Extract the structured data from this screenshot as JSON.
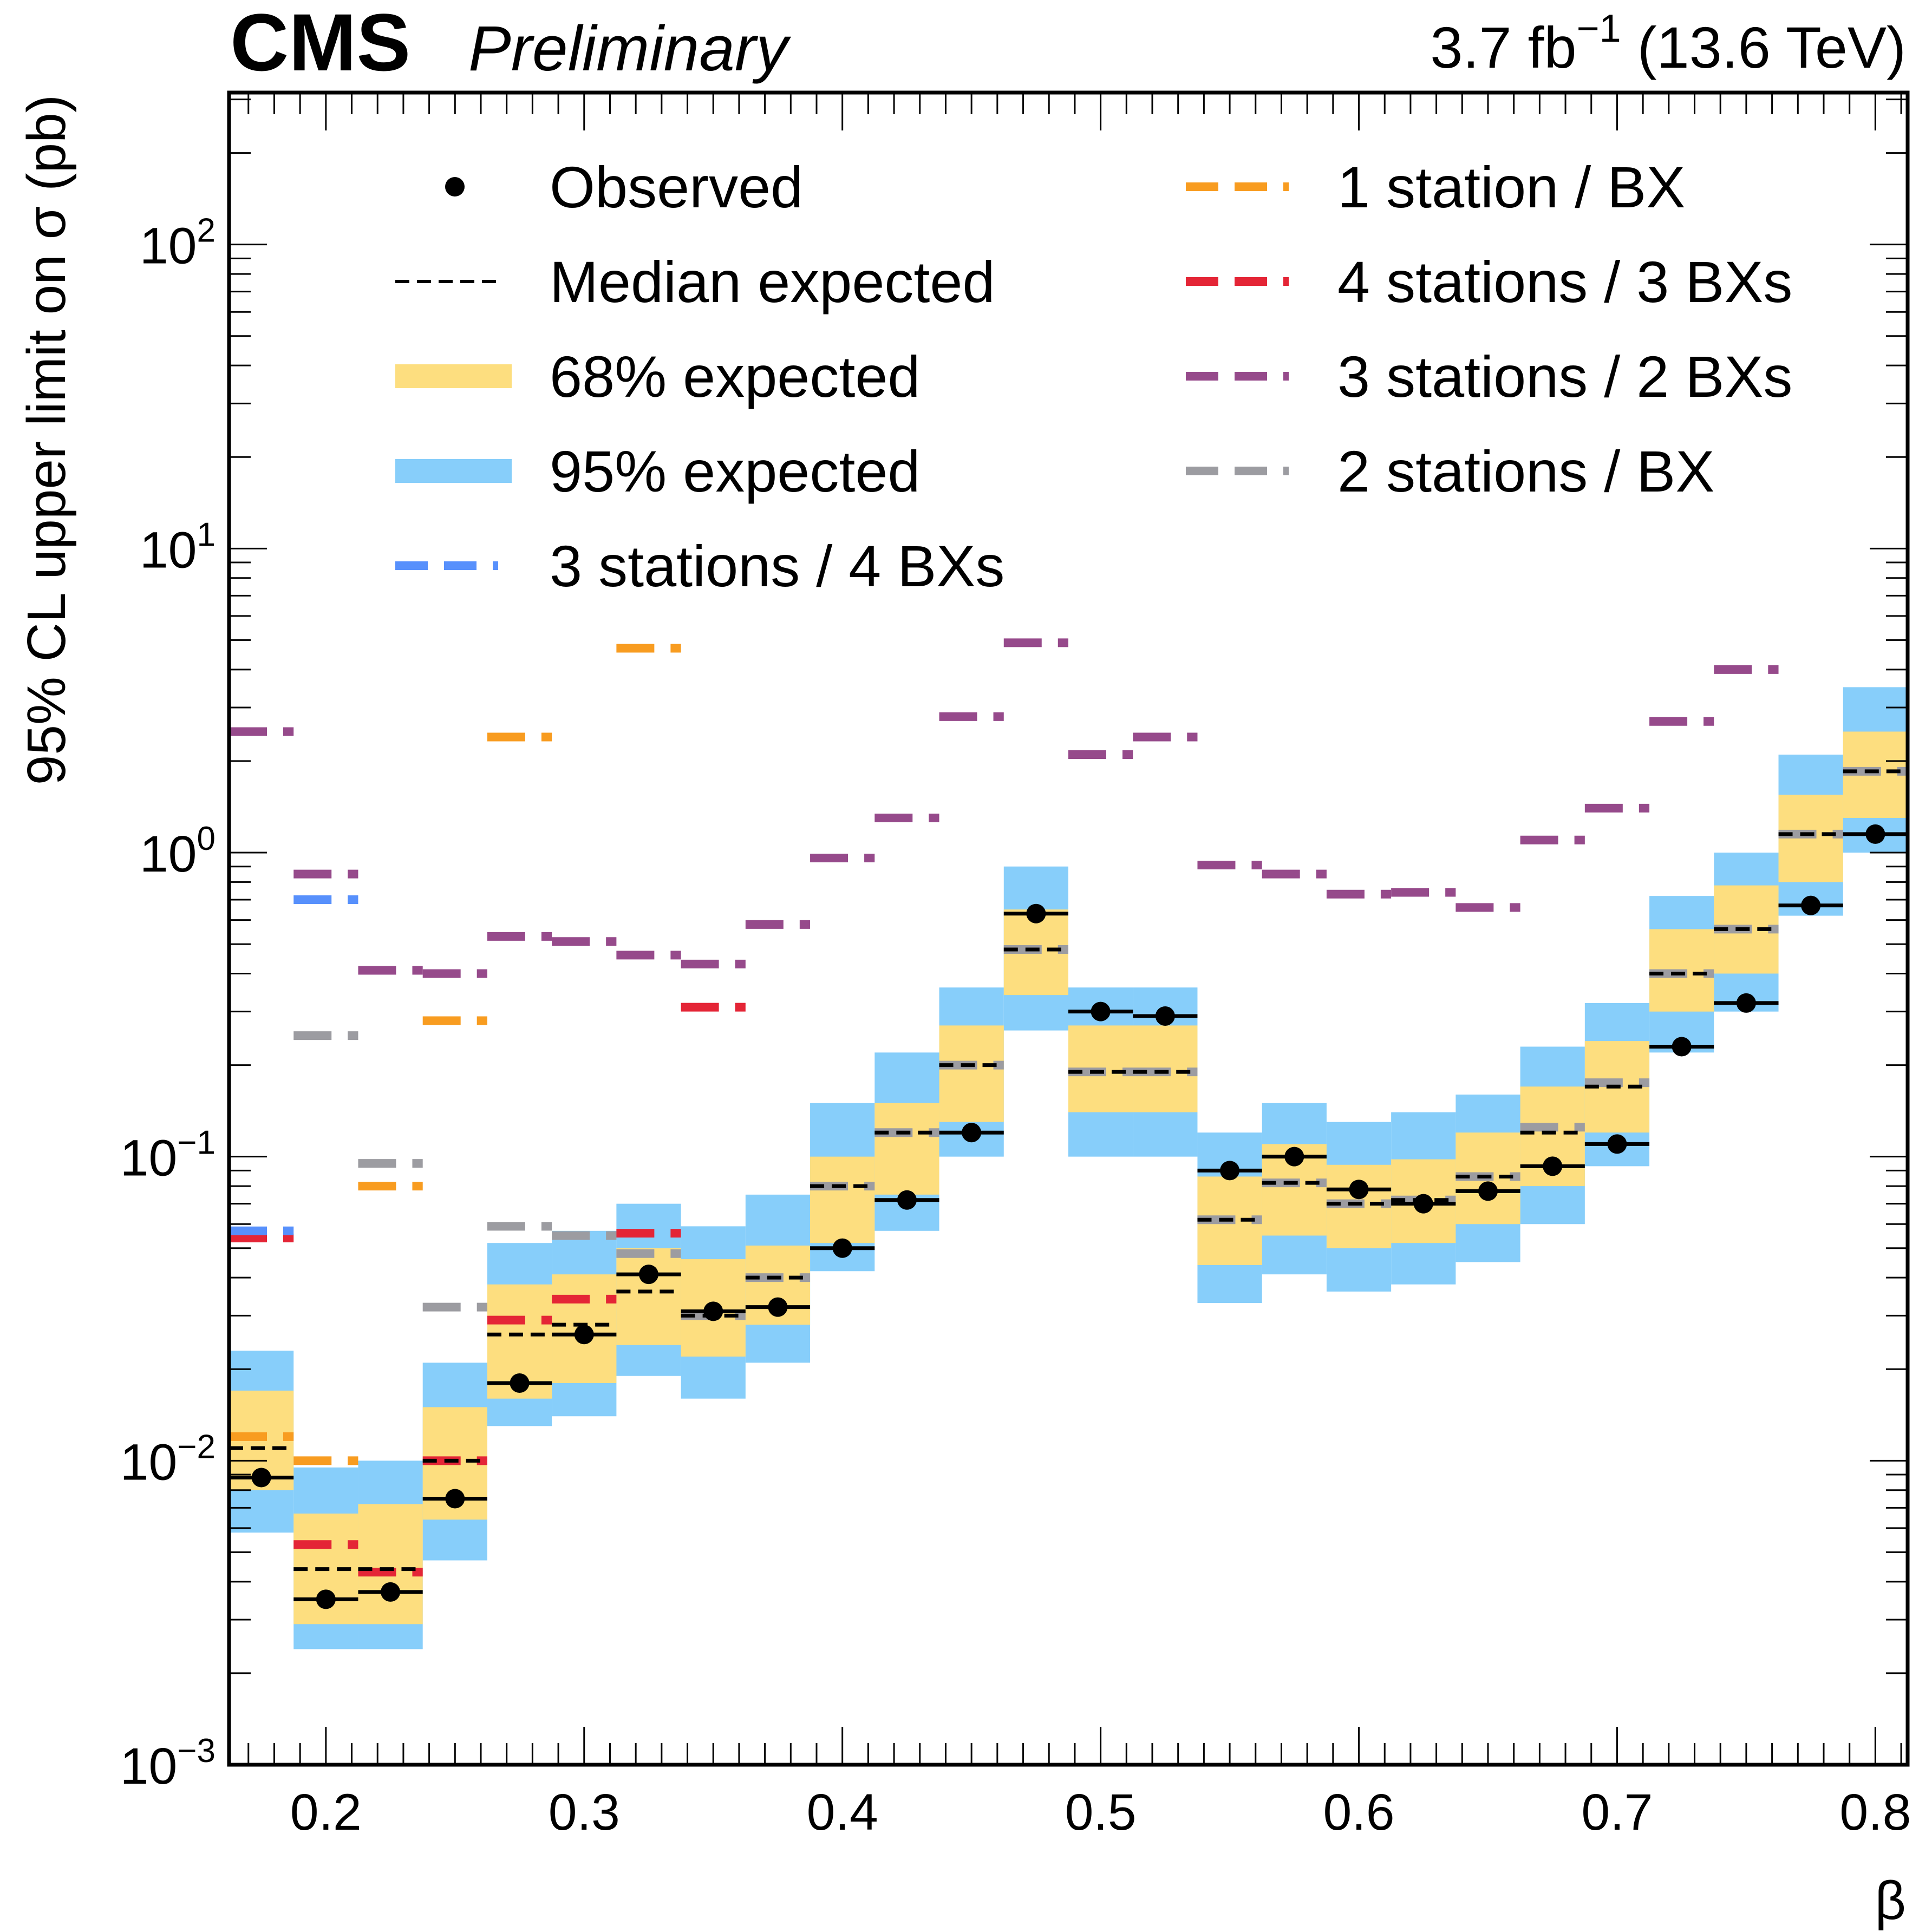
{
  "header": {
    "experiment": "CMS",
    "status": "Preliminary",
    "lumi_prefix": "3.7 fb",
    "lumi_exp": "−1",
    "lumi_suffix": " (13.6 TeV)"
  },
  "colors": {
    "observed": "#000000",
    "expected": "#000000",
    "band68": "#FDDE7F",
    "band95": "#87CEFA",
    "s3bx4": "#5790FC",
    "s1bx1": "#F89C20",
    "s4bx3": "#E42536",
    "s3bx2": "#964A8B",
    "s2bx1": "#9C9CA1"
  },
  "chart_data": {
    "type": "line",
    "title": "",
    "xlabel": "β",
    "ylabel": "95% CL upper limit on σ (pb)",
    "yscale": "log",
    "xlim": [
      0.1625,
      0.8125
    ],
    "ylim": [
      0.001,
      316
    ],
    "xticks": [
      "0.2",
      "0.3",
      "0.4",
      "0.5",
      "0.6",
      "0.7",
      "0.8"
    ],
    "xtick_values": [
      0.2,
      0.3,
      0.4,
      0.5,
      0.6,
      0.7,
      0.8
    ],
    "yticks": [
      {
        "base": "10",
        "exp": "−3",
        "v": 0.001
      },
      {
        "base": "10",
        "exp": "−2",
        "v": 0.01
      },
      {
        "base": "10",
        "exp": "−1",
        "v": 0.1
      },
      {
        "base": "10",
        "exp": "0",
        "v": 1
      },
      {
        "base": "10",
        "exp": "1",
        "v": 10
      },
      {
        "base": "10",
        "exp": "2",
        "v": 100
      }
    ],
    "bin_width": 0.025,
    "x": [
      0.175,
      0.2,
      0.225,
      0.25,
      0.275,
      0.3,
      0.325,
      0.35,
      0.375,
      0.4,
      0.425,
      0.45,
      0.475,
      0.5,
      0.525,
      0.55,
      0.575,
      0.6,
      0.625,
      0.65,
      0.675,
      0.7,
      0.725,
      0.75,
      0.775,
      0.8
    ],
    "legend": {
      "placement": "top",
      "entries": [
        {
          "key": "observed",
          "label": "Observed",
          "style": "marker"
        },
        {
          "key": "expected",
          "label": "Median expected",
          "style": "dash-thin"
        },
        {
          "key": "band68",
          "label": "68% expected",
          "style": "band"
        },
        {
          "key": "band95",
          "label": "95% expected",
          "style": "band"
        },
        {
          "key": "s3bx4",
          "label": "3 stations / 4 BXs",
          "style": "dash"
        },
        {
          "key": "s1bx1",
          "label": "1 station / BX",
          "style": "dash"
        },
        {
          "key": "s4bx3",
          "label": "4 stations / 3 BXs",
          "style": "dash"
        },
        {
          "key": "s3bx2",
          "label": "3 stations / 2 BXs",
          "style": "dash"
        },
        {
          "key": "s2bx1",
          "label": "2 stations / BX",
          "style": "dash"
        }
      ]
    },
    "series": [
      {
        "name": "Observed",
        "key": "observed",
        "values": [
          0.0088,
          0.0035,
          0.0037,
          0.0075,
          0.018,
          0.026,
          0.041,
          0.031,
          0.032,
          0.05,
          0.072,
          0.12,
          0.63,
          0.3,
          0.29,
          0.09,
          0.1,
          0.078,
          0.07,
          0.077,
          0.093,
          0.11,
          0.23,
          0.32,
          0.67,
          1.15
        ]
      },
      {
        "name": "Median expected",
        "key": "expected",
        "values": [
          0.011,
          0.0044,
          0.0044,
          0.01,
          0.026,
          0.028,
          0.036,
          0.03,
          0.04,
          0.08,
          0.12,
          0.2,
          0.48,
          0.19,
          0.19,
          0.062,
          0.082,
          0.07,
          0.072,
          0.086,
          0.12,
          0.17,
          0.4,
          0.56,
          1.15,
          1.85
        ]
      },
      {
        "name": "68% expected low",
        "key": "band68_lo",
        "values": [
          0.008,
          0.0029,
          0.0029,
          0.0064,
          0.016,
          0.018,
          0.024,
          0.022,
          0.028,
          0.052,
          0.075,
          0.13,
          0.34,
          0.14,
          0.14,
          0.044,
          0.055,
          0.05,
          0.052,
          0.06,
          0.08,
          0.12,
          0.3,
          0.4,
          0.8,
          1.3
        ]
      },
      {
        "name": "68% expected high",
        "key": "band68_hi",
        "values": [
          0.017,
          0.0067,
          0.0072,
          0.015,
          0.038,
          0.041,
          0.05,
          0.046,
          0.051,
          0.1,
          0.15,
          0.27,
          0.65,
          0.27,
          0.27,
          0.086,
          0.11,
          0.094,
          0.098,
          0.12,
          0.17,
          0.24,
          0.56,
          0.78,
          1.55,
          2.5
        ]
      },
      {
        "name": "95% expected low",
        "key": "band95_lo",
        "values": [
          0.0058,
          0.0024,
          0.0024,
          0.0047,
          0.013,
          0.014,
          0.019,
          0.016,
          0.021,
          0.042,
          0.057,
          0.1,
          0.26,
          0.1,
          0.1,
          0.033,
          0.041,
          0.036,
          0.038,
          0.045,
          0.06,
          0.093,
          0.22,
          0.3,
          0.62,
          1.0
        ]
      },
      {
        "name": "95% expected high",
        "key": "band95_hi",
        "values": [
          0.023,
          0.0095,
          0.01,
          0.021,
          0.052,
          0.057,
          0.07,
          0.059,
          0.075,
          0.15,
          0.22,
          0.36,
          0.9,
          0.36,
          0.36,
          0.12,
          0.15,
          0.13,
          0.14,
          0.16,
          0.23,
          0.32,
          0.72,
          1.0,
          2.1,
          3.5
        ]
      },
      {
        "name": "3 stations / 4 BXs",
        "key": "s3bx4",
        "values": [
          0.057,
          0.7,
          null,
          null,
          null,
          null,
          null,
          null,
          null,
          null,
          null,
          null,
          null,
          null,
          null,
          null,
          null,
          null,
          null,
          null,
          null,
          null,
          null,
          null,
          null,
          null
        ]
      },
      {
        "name": "1 station / BX",
        "key": "s1bx1",
        "values": [
          0.012,
          0.01,
          0.08,
          0.28,
          2.4,
          null,
          4.7,
          null,
          null,
          null,
          null,
          null,
          null,
          null,
          null,
          null,
          null,
          null,
          null,
          null,
          null,
          null,
          null,
          null,
          null,
          null
        ]
      },
      {
        "name": "4 stations / 3 BXs",
        "key": "s4bx3",
        "values": [
          0.054,
          0.0053,
          0.0043,
          0.01,
          0.029,
          0.034,
          0.056,
          0.31,
          null,
          null,
          null,
          null,
          null,
          null,
          null,
          null,
          null,
          null,
          null,
          null,
          null,
          null,
          null,
          null,
          null,
          null
        ]
      },
      {
        "name": "3 stations / 2 BXs",
        "key": "s3bx2",
        "values": [
          2.5,
          0.85,
          0.41,
          0.4,
          0.53,
          0.51,
          0.46,
          0.43,
          0.58,
          0.96,
          1.3,
          2.8,
          4.9,
          2.1,
          2.4,
          0.91,
          0.85,
          0.73,
          0.74,
          0.66,
          1.1,
          1.4,
          2.7,
          4.0,
          null,
          null
        ]
      },
      {
        "name": "2 stations / BX",
        "key": "s2bx1",
        "values": [
          null,
          0.25,
          0.095,
          0.032,
          0.059,
          0.055,
          0.048,
          0.03,
          0.04,
          0.08,
          0.12,
          0.2,
          0.48,
          0.19,
          0.19,
          0.062,
          0.082,
          0.07,
          0.072,
          0.086,
          0.125,
          0.175,
          0.4,
          0.56,
          1.15,
          1.85
        ]
      }
    ]
  }
}
